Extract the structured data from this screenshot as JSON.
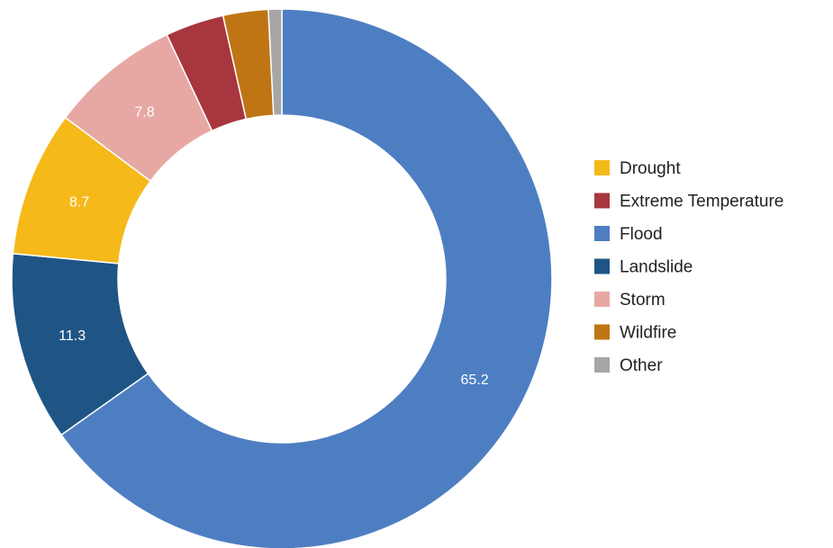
{
  "chart_data": {
    "type": "pie",
    "donut": true,
    "title": "",
    "categories": [
      "Drought",
      "Extreme Temperature",
      "Flood",
      "Landslide",
      "Storm",
      "Wildfire",
      "Other"
    ],
    "values": [
      8.7,
      3.5,
      65.2,
      11.3,
      7.8,
      2.7,
      0.8
    ],
    "value_labels_shown": [
      true,
      false,
      true,
      true,
      true,
      false,
      false
    ],
    "clockwise_from_top_order": [
      "Flood",
      "Landslide",
      "Drought",
      "Storm",
      "Extreme Temperature",
      "Wildfire",
      "Other"
    ],
    "colors": {
      "Drought": "#f5b91a",
      "Extreme Temperature": "#a8363f",
      "Flood": "#4e7ec2",
      "Landslide": "#1f5585",
      "Storm": "#e7a8a4",
      "Wildfire": "#c07514",
      "Other": "#a6a6a6"
    },
    "legend_position": "right",
    "legend": [
      "Drought",
      "Extreme Temperature",
      "Flood",
      "Landslide",
      "Storm",
      "Wildfire",
      "Other"
    ]
  }
}
